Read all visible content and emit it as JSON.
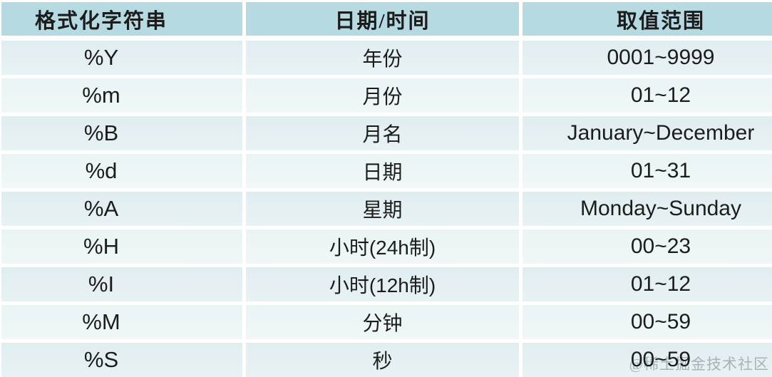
{
  "table": {
    "columns": [
      "格式化字符串",
      "日期/时间",
      "取值范围"
    ],
    "rows": [
      [
        "%Y",
        "年份",
        "0001~9999"
      ],
      [
        "%m",
        "月份",
        "01~12"
      ],
      [
        "%B",
        "月名",
        "January~December"
      ],
      [
        "%d",
        "日期",
        "01~31"
      ],
      [
        "%A",
        "星期",
        "Monday~Sunday"
      ],
      [
        "%H",
        "小时(24h制)",
        "00~23"
      ],
      [
        "%I",
        "小时(12h制)",
        "01~12"
      ],
      [
        "%M",
        "分钟",
        "00~59"
      ],
      [
        "%S",
        "秒",
        "00~59"
      ]
    ]
  },
  "watermark": "@稀土掘金技术社区",
  "colors": {
    "header_bg": "#b5dae2",
    "row_odd": "#e2eff2",
    "row_even": "#ecf5f6",
    "separator": "#ffffff",
    "text": "#1c1c1c",
    "watermark": "#828e94"
  }
}
